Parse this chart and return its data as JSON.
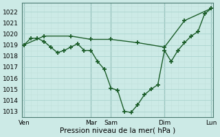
{
  "title": "Pression niveau de la mer( hPa )",
  "bg_color": "#cceae6",
  "line_color": "#1a5c28",
  "grid_major_color": "#aad4cf",
  "grid_minor_color": "#c0e0db",
  "ylim": [
    1012.5,
    1022.8
  ],
  "yticks": [
    1013,
    1014,
    1015,
    1016,
    1017,
    1018,
    1019,
    1020,
    1021,
    1022
  ],
  "xlim": [
    -0.3,
    28.3
  ],
  "xtick_labels": [
    "Ven",
    "Mar",
    "Sam",
    "Dim",
    "Lun"
  ],
  "xtick_positions": [
    0,
    10,
    13,
    21,
    28
  ],
  "vline_positions": [
    0,
    10,
    13,
    21,
    28
  ],
  "line1_x": [
    0,
    1,
    2,
    3,
    4,
    5,
    6,
    7,
    8,
    9,
    10,
    11,
    12,
    13,
    14,
    15,
    16,
    17,
    18,
    19,
    20,
    21,
    22,
    23,
    24,
    25,
    26,
    27,
    28
  ],
  "line1_y": [
    1019.0,
    1019.6,
    1019.6,
    1019.3,
    1018.8,
    1018.3,
    1018.5,
    1018.8,
    1019.1,
    1018.5,
    1018.5,
    1017.5,
    1016.8,
    1015.1,
    1014.9,
    1013.0,
    1012.9,
    1013.6,
    1014.5,
    1015.0,
    1015.4,
    1018.5,
    1017.5,
    1018.5,
    1019.2,
    1019.8,
    1020.2,
    1021.8,
    1022.3
  ],
  "line2_x": [
    0,
    3,
    7,
    10,
    13,
    17,
    21,
    24,
    28
  ],
  "line2_y": [
    1019.0,
    1019.8,
    1019.8,
    1019.5,
    1019.5,
    1019.2,
    1018.8,
    1021.2,
    1022.3
  ],
  "marker": "+",
  "markersize": 4,
  "markeredgewidth": 1.3,
  "linewidth": 1.0,
  "xlabel_fontsize": 7.5,
  "tick_fontsize": 6.5
}
